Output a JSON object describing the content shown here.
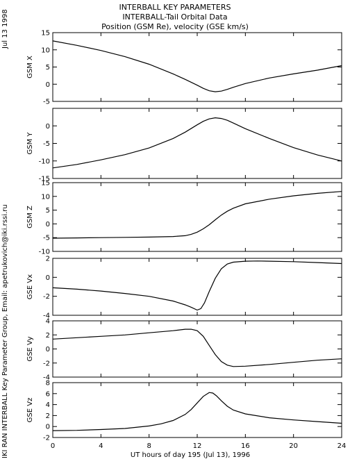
{
  "header": {
    "date_stamp": "Jul 13 1998",
    "title_lines": [
      "INTERBALL KEY PARAMETERS",
      "INTERBALL-Tail Orbital Data",
      "Position (GSM Re), velocity (GSE km/s)"
    ],
    "credit": "IKI RAN INTERBALL Key Parameter Group, Email: apetrukovich@iki.rssi.ru"
  },
  "chart_data": {
    "type": "line",
    "xlabel": "UT hours of day 195 (Jul 13), 1996",
    "xlim": [
      0,
      24
    ],
    "xticks": [
      0,
      4,
      8,
      12,
      16,
      20,
      24
    ],
    "panels": [
      {
        "ylabel": "GSM X",
        "ylim": [
          -5,
          15
        ],
        "yticks": [
          -5,
          0,
          5,
          10,
          15
        ],
        "series": [
          {
            "x": [
              0,
              2,
              4,
              6,
              8,
              10,
              11,
              12,
              12.5,
              13,
              13.5,
              14,
              14.5,
              15,
              16,
              18,
              20,
              22,
              24
            ],
            "y": [
              12.6,
              11.3,
              9.8,
              8.0,
              5.8,
              3.0,
              1.4,
              -0.3,
              -1.2,
              -1.9,
              -2.2,
              -2.0,
              -1.5,
              -0.9,
              0.2,
              1.8,
              3.0,
              4.1,
              5.4
            ]
          }
        ]
      },
      {
        "ylabel": "GSM Y",
        "ylim": [
          -15,
          5
        ],
        "yticks": [
          -15,
          -10,
          -5,
          0
        ],
        "series": [
          {
            "x": [
              0,
              2,
              4,
              6,
              8,
              10,
              11,
              12,
              12.5,
              13,
              13.5,
              14,
              14.5,
              15,
              16,
              18,
              20,
              22,
              24
            ],
            "y": [
              -12.0,
              -11.0,
              -9.7,
              -8.2,
              -6.3,
              -3.6,
              -1.8,
              0.3,
              1.3,
              2.0,
              2.3,
              2.1,
              1.6,
              0.8,
              -0.8,
              -3.6,
              -6.2,
              -8.3,
              -10.0
            ]
          }
        ]
      },
      {
        "ylabel": "GSM Z",
        "ylim": [
          -10,
          15
        ],
        "yticks": [
          -10,
          -5,
          0,
          5,
          10,
          15
        ],
        "series": [
          {
            "x": [
              0,
              2,
              4,
              6,
              8,
              10,
              11,
              11.5,
              12,
              12.5,
              13,
              13.5,
              14,
              14.5,
              15,
              16,
              18,
              20,
              22,
              24
            ],
            "y": [
              -5.2,
              -5.1,
              -5.0,
              -4.9,
              -4.8,
              -4.6,
              -4.3,
              -3.8,
              -3.0,
              -1.8,
              -0.3,
              1.5,
              3.2,
              4.6,
              5.7,
              7.3,
              9.0,
              10.2,
              11.1,
              11.8
            ]
          }
        ]
      },
      {
        "ylabel": "GSE Vx",
        "ylim": [
          -4,
          2
        ],
        "yticks": [
          -4,
          -2,
          0,
          2
        ],
        "series": [
          {
            "x": [
              0,
              2,
              4,
              6,
              8,
              10,
              11,
              11.5,
              12,
              12.3,
              12.6,
              13,
              13.5,
              14,
              14.5,
              15,
              16,
              17,
              18,
              20,
              22,
              24
            ],
            "y": [
              -1.1,
              -1.25,
              -1.45,
              -1.7,
              -2.0,
              -2.5,
              -2.9,
              -3.15,
              -3.45,
              -3.3,
              -2.7,
              -1.5,
              -0.1,
              0.9,
              1.4,
              1.6,
              1.7,
              1.72,
              1.7,
              1.65,
              1.55,
              1.45
            ]
          }
        ]
      },
      {
        "ylabel": "GSE Vy",
        "ylim": [
          -4,
          4
        ],
        "yticks": [
          -4,
          -2,
          0,
          2,
          4
        ],
        "series": [
          {
            "x": [
              0,
              2,
              4,
              6,
              8,
              10,
              11,
              11.5,
              12,
              12.5,
              13,
              13.5,
              14,
              14.5,
              15,
              16,
              18,
              20,
              22,
              24
            ],
            "y": [
              1.4,
              1.6,
              1.8,
              2.0,
              2.3,
              2.6,
              2.8,
              2.8,
              2.6,
              1.8,
              0.5,
              -0.8,
              -1.8,
              -2.3,
              -2.5,
              -2.45,
              -2.2,
              -1.9,
              -1.6,
              -1.4
            ]
          }
        ]
      },
      {
        "ylabel": "GSE Vz",
        "ylim": [
          -2,
          8
        ],
        "yticks": [
          -2,
          0,
          2,
          4,
          6,
          8
        ],
        "series": [
          {
            "x": [
              0,
              2,
              4,
              6,
              8,
              9,
              10,
              11,
              11.5,
              12,
              12.5,
              13,
              13.3,
              13.6,
              14,
              14.5,
              15,
              16,
              18,
              20,
              22,
              24
            ],
            "y": [
              -0.75,
              -0.7,
              -0.55,
              -0.35,
              0.1,
              0.5,
              1.1,
              2.2,
              3.1,
              4.3,
              5.5,
              6.2,
              6.1,
              5.6,
              4.7,
              3.7,
              3.0,
              2.3,
              1.6,
              1.2,
              0.9,
              0.6
            ]
          }
        ]
      }
    ]
  }
}
